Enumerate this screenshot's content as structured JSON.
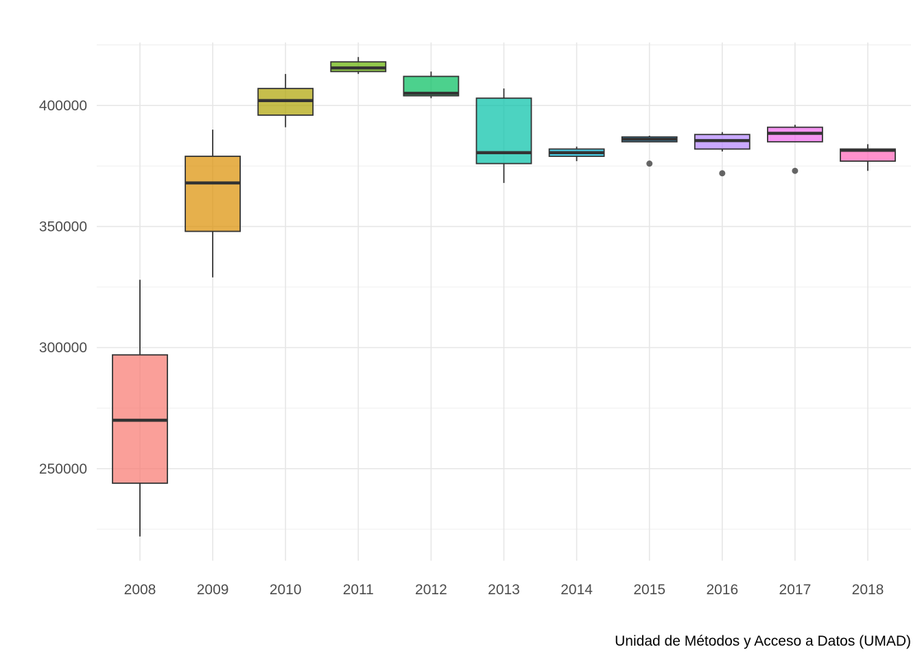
{
  "chart_data": {
    "type": "boxplot",
    "title": "",
    "xlabel": "",
    "ylabel": "",
    "caption": "Unidad de Métodos y Acceso a Datos (UMAD)",
    "ylim": [
      212000,
      426000
    ],
    "y_ticks": [
      250000,
      300000,
      350000,
      400000
    ],
    "y_tick_labels": [
      "250000",
      "300000",
      "350000",
      "400000"
    ],
    "grid": true,
    "legend": "none",
    "categories": [
      "2008",
      "2009",
      "2010",
      "2011",
      "2012",
      "2013",
      "2014",
      "2015",
      "2016",
      "2017",
      "2018"
    ],
    "boxes": [
      {
        "year": "2008",
        "whisker_low": 222000,
        "q1": 244000,
        "median": 270000,
        "q3": 297000,
        "whisker_high": 328000,
        "outliers": [],
        "color": "#F8766D"
      },
      {
        "year": "2009",
        "whisker_low": 329000,
        "q1": 348000,
        "median": 368000,
        "q3": 379000,
        "whisker_high": 390000,
        "outliers": [],
        "color": "#DB8E00"
      },
      {
        "year": "2010",
        "whisker_low": 391000,
        "q1": 396000,
        "median": 402000,
        "q3": 407000,
        "whisker_high": 413000,
        "outliers": [],
        "color": "#AEA200"
      },
      {
        "year": "2011",
        "whisker_low": 413000,
        "q1": 414000,
        "median": 415500,
        "q3": 418000,
        "whisker_high": 420000,
        "outliers": [],
        "color": "#64B200"
      },
      {
        "year": "2012",
        "whisker_low": 403000,
        "q1": 404000,
        "median": 405000,
        "q3": 412000,
        "whisker_high": 414000,
        "outliers": [],
        "color": "#00BD5C"
      },
      {
        "year": "2013",
        "whisker_low": 368000,
        "q1": 376000,
        "median": 380500,
        "q3": 403000,
        "whisker_high": 407000,
        "outliers": [],
        "color": "#00C1A7"
      },
      {
        "year": "2014",
        "whisker_low": 377000,
        "q1": 379000,
        "median": 380500,
        "q3": 382000,
        "whisker_high": 383000,
        "outliers": [],
        "color": "#00BADE"
      },
      {
        "year": "2015",
        "whisker_low": 385000,
        "q1": 385000,
        "median": 386000,
        "q3": 387000,
        "whisker_high": 387500,
        "outliers": [
          376000
        ],
        "color": "#00A6FF"
      },
      {
        "year": "2016",
        "whisker_low": 381000,
        "q1": 382000,
        "median": 385500,
        "q3": 388000,
        "whisker_high": 389000,
        "outliers": [
          372000
        ],
        "color": "#B385FF"
      },
      {
        "year": "2017",
        "whisker_low": 385000,
        "q1": 385000,
        "median": 388500,
        "q3": 391000,
        "whisker_high": 392000,
        "outliers": [
          373000
        ],
        "color": "#EF67EB"
      },
      {
        "year": "2018",
        "whisker_low": 373000,
        "q1": 377000,
        "median": 381500,
        "q3": 382000,
        "whisker_high": 384000,
        "outliers": [],
        "color": "#FF63B6"
      }
    ]
  }
}
